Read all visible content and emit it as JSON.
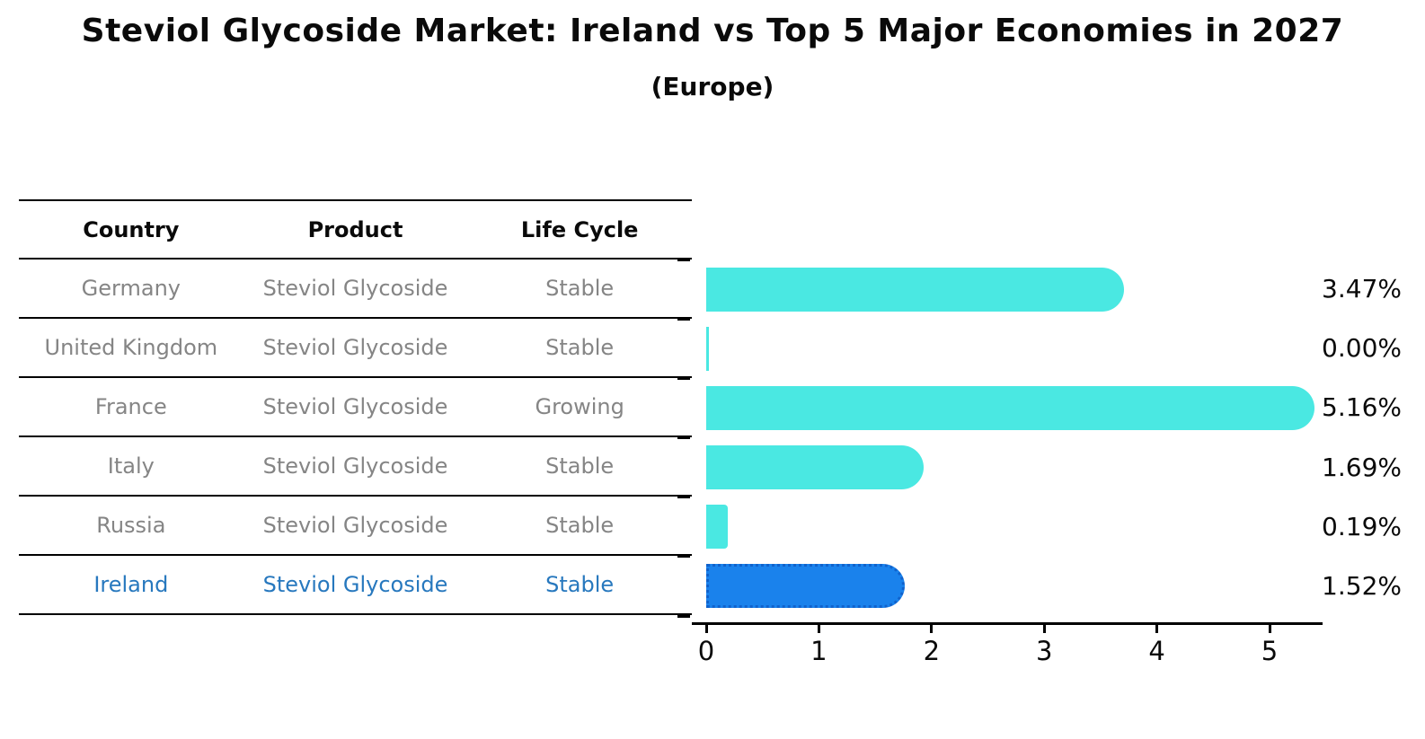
{
  "header": {
    "title": "Steviol Glycoside Market: Ireland vs Top 5 Major Economies in 2027",
    "subtitle": "(Europe)"
  },
  "table": {
    "columns": [
      "Country",
      "Product",
      "Life Cycle"
    ],
    "rows": [
      {
        "country": "Germany",
        "product": "Steviol Glycoside",
        "life_cycle": "Stable",
        "highlight": false
      },
      {
        "country": "United Kingdom",
        "product": "Steviol Glycoside",
        "life_cycle": "Stable",
        "highlight": false
      },
      {
        "country": "France",
        "product": "Steviol Glycoside",
        "life_cycle": "Growing",
        "highlight": false
      },
      {
        "country": "Italy",
        "product": "Steviol Glycoside",
        "life_cycle": "Stable",
        "highlight": false
      },
      {
        "country": "Russia",
        "product": "Steviol Glycoside",
        "life_cycle": "Stable",
        "highlight": false
      },
      {
        "country": "Ireland",
        "product": "Steviol Glycoside",
        "life_cycle": "Stable",
        "highlight": true
      }
    ]
  },
  "chart_data": {
    "type": "bar",
    "orientation": "horizontal",
    "title": "Steviol Glycoside Market: Ireland vs Top 5 Major Economies in 2027 (Europe)",
    "categories": [
      "Germany",
      "United Kingdom",
      "France",
      "Italy",
      "Russia",
      "Ireland"
    ],
    "values": [
      3.47,
      0.0,
      5.16,
      1.69,
      0.19,
      1.52
    ],
    "value_labels": [
      "3.47%",
      "0.00%",
      "5.16%",
      "1.69%",
      "0.19%",
      "1.52%"
    ],
    "x_ticks": [
      "0",
      "1",
      "2",
      "3",
      "4",
      "5"
    ],
    "xlim": [
      0,
      5.45
    ],
    "grid": false,
    "legend": "none",
    "bar_color": "#4ae8e2",
    "highlight_index": 5,
    "highlight_color": "#1a82ec",
    "highlight_border_color": "#1062cc",
    "highlight_text_color": "#2778be"
  }
}
